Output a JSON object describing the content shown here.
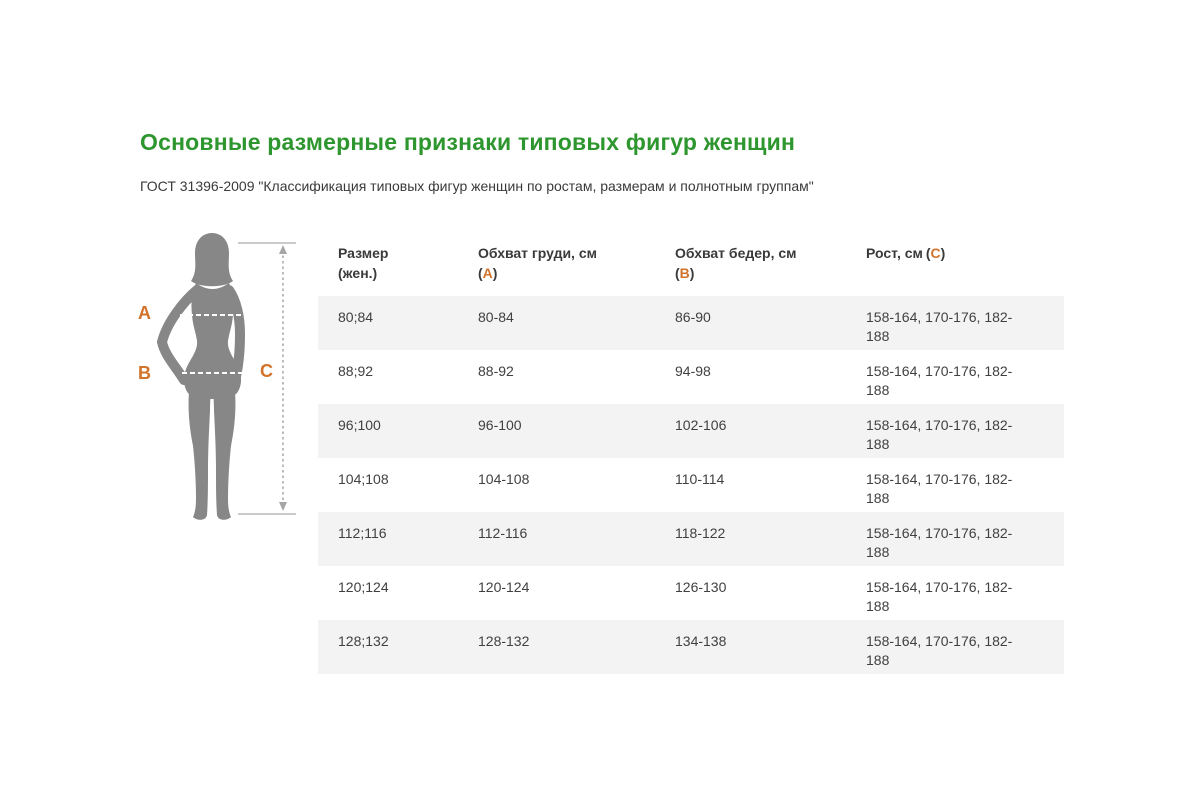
{
  "page": {
    "title": "Основные размерные признаки типовых фигур женщин",
    "subtitle": "ГОСТ 31396-2009 \"Классификация типовых фигур женщин по ростам, размерам и полнотным группам\""
  },
  "colors": {
    "title_green": "#2e962e",
    "accent_orange": "#d2732b",
    "silhouette_gray": "#878787",
    "row_stripe": "#f3f3f3",
    "text_dark": "#3a3a3a"
  },
  "figure": {
    "labels": {
      "chest": "A",
      "hips": "B",
      "height": "C"
    }
  },
  "table": {
    "paren_open": "(",
    "paren_close": ")",
    "headers": [
      {
        "line1": "Размер",
        "line2": "(жен.)"
      },
      {
        "line1": "Обхват груди, см",
        "letter": "A"
      },
      {
        "line1": "Обхват бедер, см",
        "letter": "B"
      },
      {
        "line1": "Рост, см",
        "letter": "C"
      }
    ],
    "rows": [
      [
        "80;84",
        "80-84",
        "86-90",
        "158-164, 170-176, 182-188"
      ],
      [
        "88;92",
        "88-92",
        "94-98",
        "158-164, 170-176, 182-188"
      ],
      [
        "96;100",
        "96-100",
        "102-106",
        "158-164, 170-176, 182-188"
      ],
      [
        "104;108",
        "104-108",
        "110-114",
        "158-164, 170-176, 182-188"
      ],
      [
        "112;116",
        "112-116",
        "118-122",
        "158-164, 170-176, 182-188"
      ],
      [
        "120;124",
        "120-124",
        "126-130",
        "158-164, 170-176, 182-188"
      ],
      [
        "128;132",
        "128-132",
        "134-138",
        "158-164, 170-176, 182-188"
      ]
    ]
  }
}
